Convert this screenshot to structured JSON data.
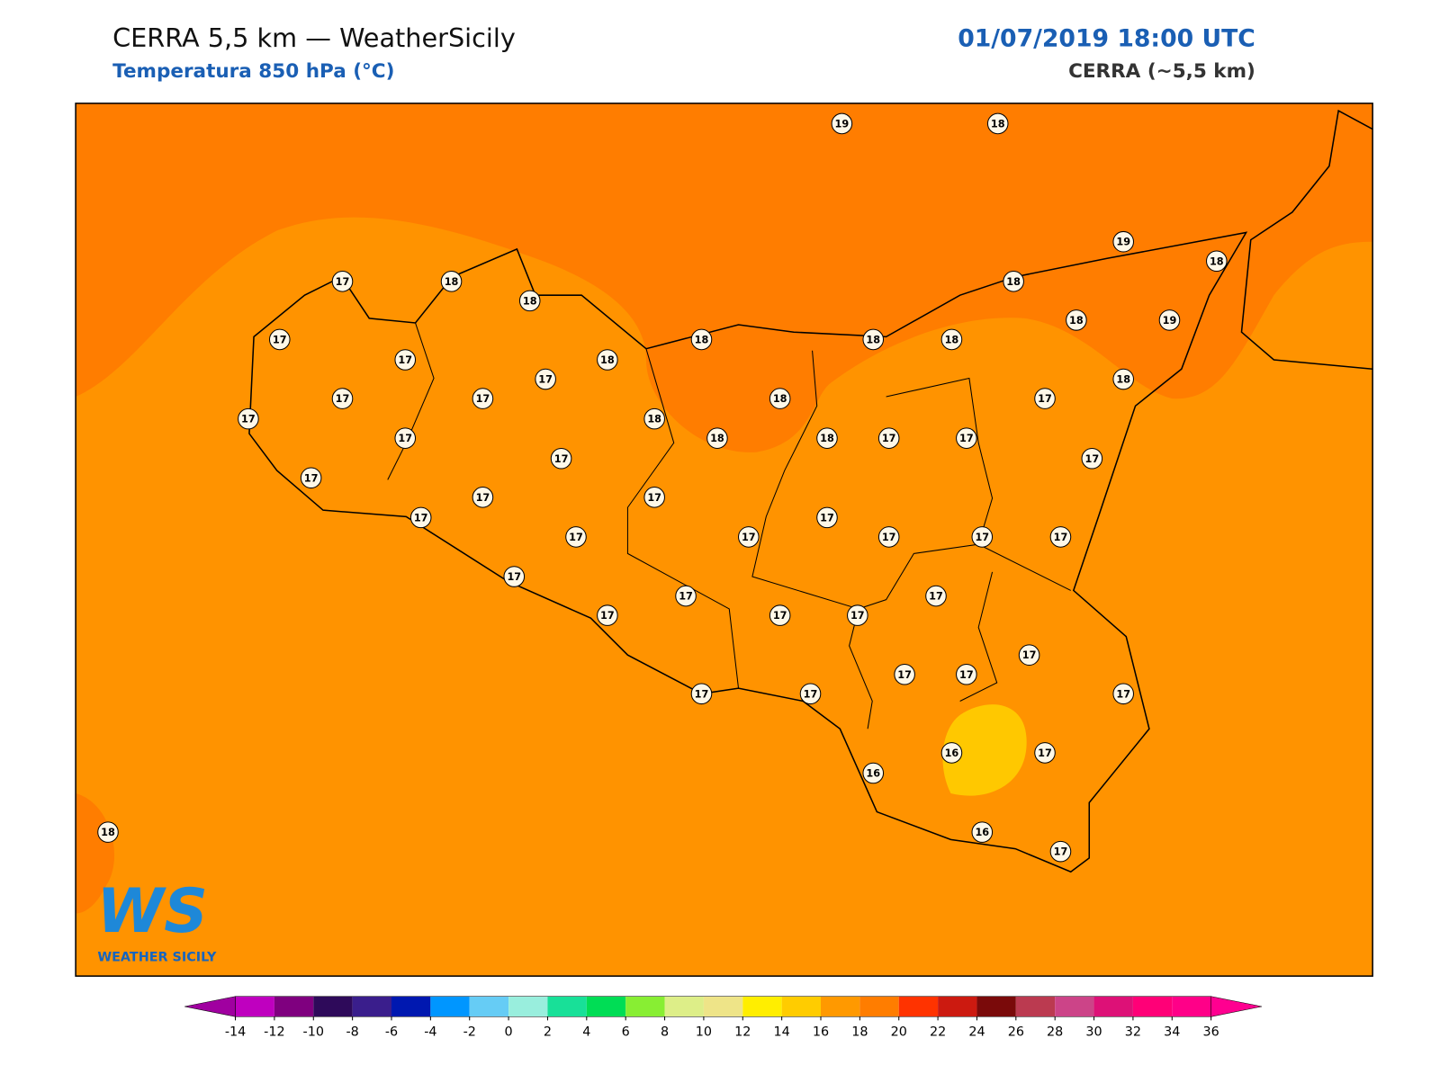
{
  "header": {
    "title": "CERRA 5,5 km — WeatherSicily",
    "subtitle": "Temperatura 850 hPa (°C)",
    "datetime": "01/07/2019 18:00 UTC",
    "source": "CERRA (~5,5 km)"
  },
  "map": {
    "station_values": [
      19,
      18,
      19,
      18,
      17,
      18,
      18,
      18,
      18,
      19,
      17,
      18,
      18,
      18,
      17,
      18,
      17,
      18,
      17,
      17,
      18,
      17,
      17,
      18,
      17,
      18,
      18,
      17,
      17,
      17,
      17,
      17,
      17,
      17,
      17,
      17,
      17,
      17,
      17,
      17,
      17,
      17,
      17,
      17,
      17,
      17,
      17,
      17,
      17,
      17,
      17,
      17,
      17,
      16,
      17,
      16,
      16,
      17,
      18
    ]
  },
  "logo": {
    "mark": "WS",
    "text": "WEATHER SICILY"
  },
  "colorbar": {
    "ticks": [
      -14,
      -12,
      -10,
      -8,
      -6,
      -4,
      -2,
      0,
      2,
      4,
      6,
      8,
      10,
      12,
      14,
      16,
      18,
      20,
      22,
      24,
      26,
      28,
      30,
      32,
      34,
      36
    ],
    "colors": [
      "#bf00bf",
      "#7f007f",
      "#2e0a5a",
      "#3a1e8c",
      "#0018b0",
      "#0096ff",
      "#66ccf5",
      "#99eedd",
      "#18e098",
      "#00dd55",
      "#88ee33",
      "#ddee88",
      "#eee488",
      "#ffee00",
      "#ffcc00",
      "#ff9900",
      "#ff7d00",
      "#ff3300",
      "#cc1a10",
      "#7a0a0a",
      "#bb3a50",
      "#cc4488",
      "#dd1177",
      "#ff0077",
      "#ff0088"
    ],
    "under_color": "#a000a0",
    "over_color": "#ff0090"
  }
}
